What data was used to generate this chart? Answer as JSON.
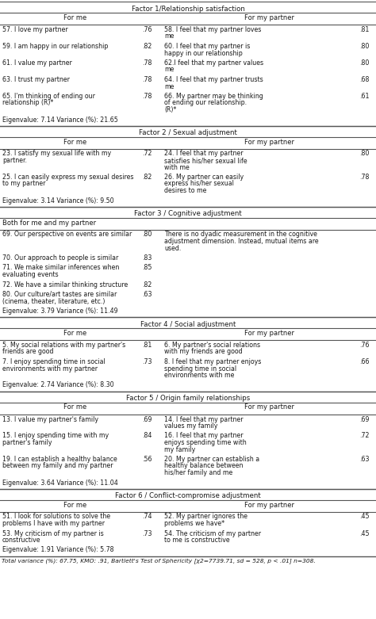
{
  "background": "#ffffff",
  "factors": [
    {
      "title": "Factor 1/Relationship satisfaction",
      "col_header_left": "For me",
      "col_header_right": "For my partner",
      "type": "paired",
      "rows": [
        {
          "left": "57. I love my partner",
          "lv": ".76",
          "right": "58. I feel that my partner loves\nme",
          "rv": ".81"
        },
        {
          "left": "59. I am happy in our relationship",
          "lv": ".82",
          "right": "60. I feel that my partner is\nhappy in our relationship",
          "rv": ".80"
        },
        {
          "left": "61. I value my partner",
          "lv": ".78",
          "right": "62.I feel that my partner values\nme",
          "rv": ".80"
        },
        {
          "left": "63. I trust my partner",
          "lv": ".78",
          "right": "64. I feel that my partner trusts\nme",
          "rv": ".68"
        },
        {
          "left": "65. I'm thinking of ending our\nrelationship (R)*",
          "lv": ".78",
          "right": "66. My partner may be thinking\nof ending our relationship.\n(R)*",
          "rv": ".61"
        }
      ],
      "eigen": "Eigenvalue: 7.14 Variance (%): 21.65"
    },
    {
      "title": "Factor 2 / Sexual adjustment",
      "col_header_left": "For me",
      "col_header_right": "For my partner",
      "type": "paired",
      "rows": [
        {
          "left": "23. I satisfy my sexual life with my\npartner.",
          "lv": ".72",
          "right": "24. I feel that my partner\nsatisfies his/her sexual life\nwith me",
          "rv": ".80"
        },
        {
          "left": "25. I can easily express my sexual desires\nto my partner",
          "lv": ".82",
          "right": "26. My partner can easily\nexpress his/her sexual\ndesires to me",
          "rv": ".78"
        }
      ],
      "eigen": "Eigenvalue: 3.14 Variance (%): 9.50"
    },
    {
      "title": "Factor 3 / Cognitive adjustment",
      "col_header_left": "Both for me and my partner",
      "col_header_right": "",
      "type": "single",
      "rows": [
        {
          "left": "69. Our perspective on events are similar",
          "lv": ".80",
          "right": "There is no dyadic measurement in the cognitive\nadjustment dimension. Instead, mutual items are\nused.",
          "rv": ""
        },
        {
          "left": "70. Our approach to people is similar",
          "lv": ".83",
          "right": "",
          "rv": ""
        },
        {
          "left": "71. We make similar inferences when\nevaluating events",
          "lv": ".85",
          "right": "",
          "rv": ""
        },
        {
          "left": "72. We have a similar thinking structure",
          "lv": ".82",
          "right": "",
          "rv": ""
        },
        {
          "left": "80. Our culture/art tastes are similar\n(cinema, theater, literature, etc.)",
          "lv": ".63",
          "right": "",
          "rv": ""
        }
      ],
      "eigen": "Eigenvalue: 3.79 Variance (%): 11.49"
    },
    {
      "title": "Factor 4 / Social adjustment",
      "col_header_left": "For me",
      "col_header_right": "For my partner",
      "type": "paired",
      "rows": [
        {
          "left": "5. My social relations with my partner's\nfriends are good",
          "lv": ".81",
          "right": "6. My partner's social relations\nwith my friends are good",
          "rv": ".76"
        },
        {
          "left": "7. I enjoy spending time in social\nenvironments with my partner",
          "lv": ".73",
          "right": "8. I feel that my partner enjoys\nspending time in social\nenvironments with me",
          "rv": ".66"
        }
      ],
      "eigen": "Eigenvalue: 2.74 Variance (%): 8.30"
    },
    {
      "title": "Factor 5 / Origin family relationships",
      "col_header_left": "For me",
      "col_header_right": "For my partner",
      "type": "paired",
      "rows": [
        {
          "left": "13. I value my partner's family",
          "lv": ".69",
          "right": "14. I feel that my partner\nvalues my family",
          "rv": ".69"
        },
        {
          "left": "15. I enjoy spending time with my\npartner's family",
          "lv": ".84",
          "right": "16. I feel that my partner\nenjoys spending time with\nmy family",
          "rv": ".72"
        },
        {
          "left": "19. I can establish a healthy balance\nbetween my family and my partner",
          "lv": ".56",
          "right": "20. My partner can establish a\nhealthy balance between\nhis/her family and me",
          "rv": ".63"
        }
      ],
      "eigen": "Eigenvalue: 3.64 Variance (%): 11.04"
    },
    {
      "title": "Factor 6 / Conflict-compromise adjustment",
      "col_header_left": "For me",
      "col_header_right": "For my partner",
      "type": "paired",
      "rows": [
        {
          "left": "51. I look for solutions to solve the\nproblems I have with my partner",
          "lv": ".74",
          "right": "52. My partner ignores the\nproblems we have*",
          "rv": ".45"
        },
        {
          "left": "53. My criticism of my partner is\nconstructive",
          "lv": ".73",
          "right": "54. The criticism of my partner\nto me is constructive",
          "rv": ".45"
        }
      ],
      "eigen": "Eigenvalue: 1.91 Variance (%): 5.78"
    }
  ],
  "footer": "Total variance (%): 67.75, KMO: .91, Bartlett's Test of Sphericity [χ2=7739.71, sd = 528, p < .01] n=308."
}
